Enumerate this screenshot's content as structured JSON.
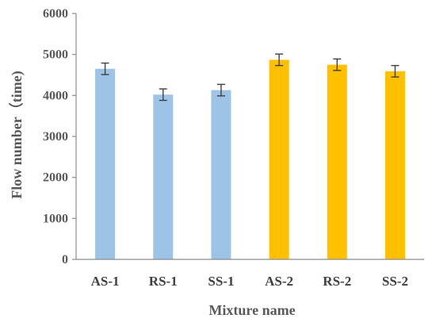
{
  "chart_data": {
    "type": "bar",
    "categories": [
      "AS-1",
      "RS-1",
      "SS-1",
      "AS-2",
      "RS-2",
      "SS-2"
    ],
    "values": [
      4650,
      4020,
      4130,
      4870,
      4750,
      4590
    ],
    "error": [
      140,
      140,
      140,
      140,
      140,
      140
    ],
    "bar_colors": [
      "#9DC3E6",
      "#9DC3E6",
      "#9DC3E6",
      "#FFC000",
      "#FFC000",
      "#FFC000"
    ],
    "xlabel": "Mixture name",
    "ylabel": "Flow number（time)",
    "ylim": [
      0,
      6000
    ],
    "yticks": [
      "0",
      "1000",
      "2000",
      "3000",
      "4000",
      "5000",
      "6000"
    ],
    "grid": false
  }
}
